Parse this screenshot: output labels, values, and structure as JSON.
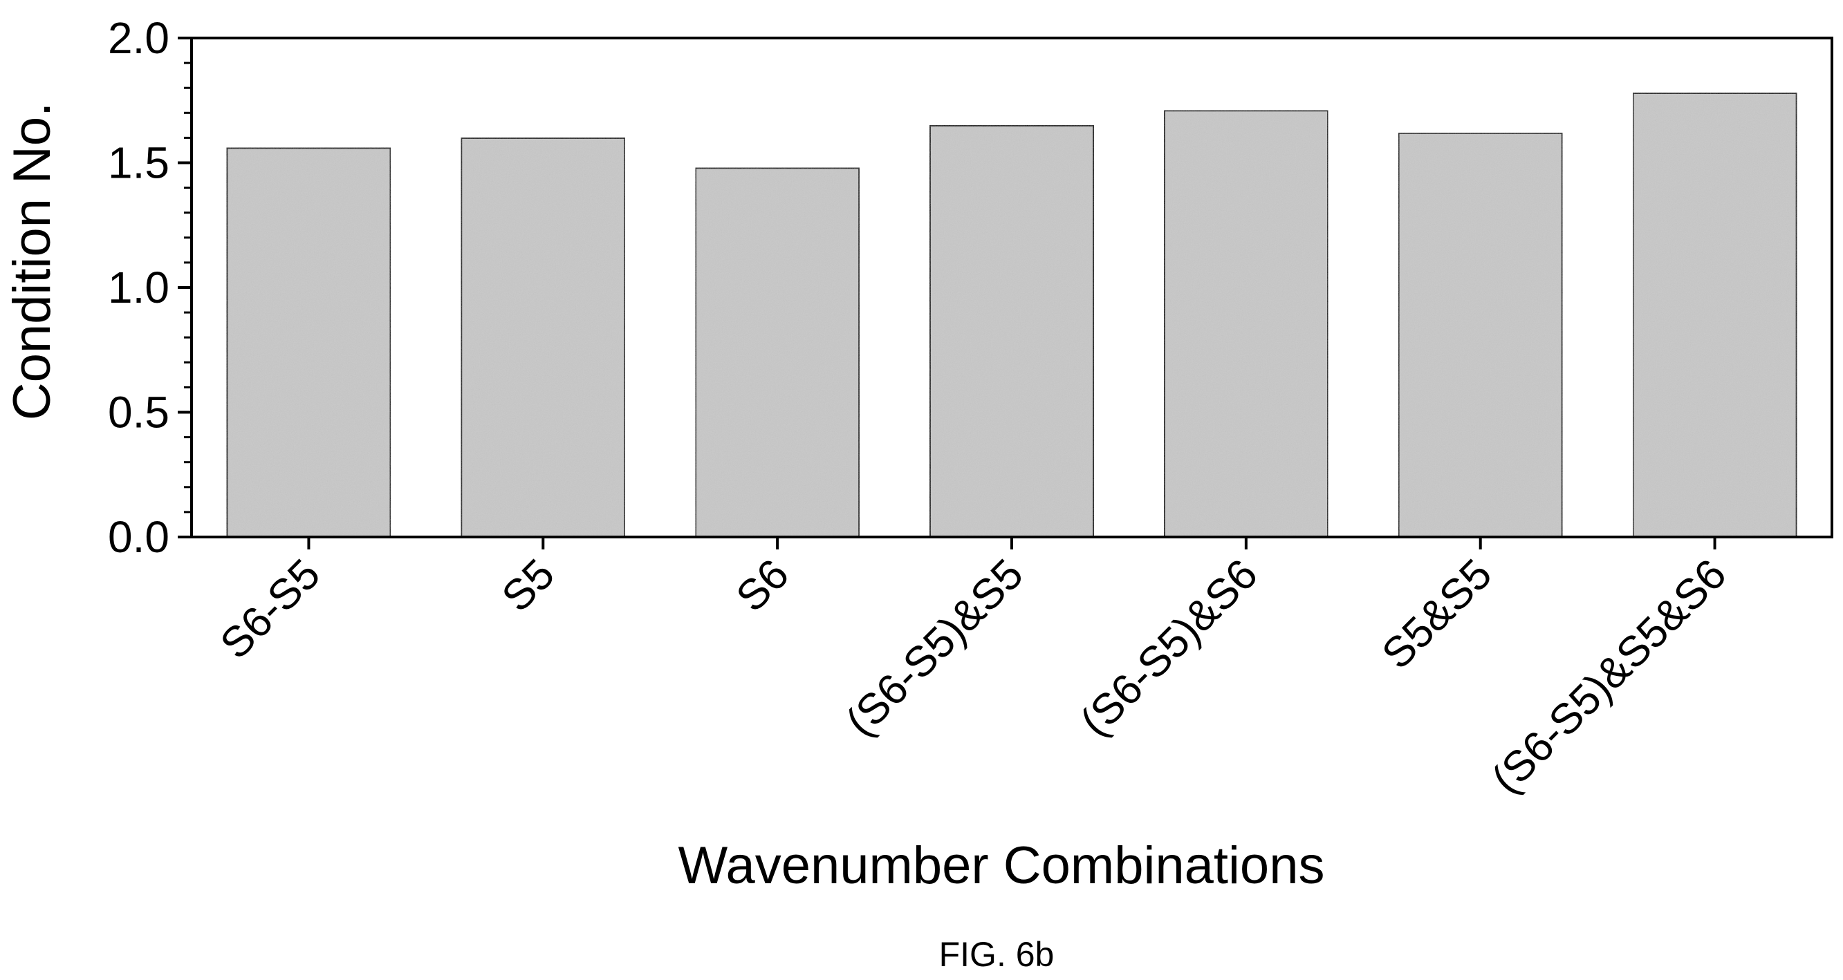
{
  "chart_data": {
    "type": "bar",
    "categories": [
      "S6-S5",
      "S5",
      "S6",
      "(S6-S5)&S5",
      "(S6-S5)&S6",
      "S5&S5",
      "(S6-S5)&S5&S6"
    ],
    "values": [
      1.56,
      1.6,
      1.48,
      1.65,
      1.71,
      1.62,
      1.78
    ],
    "xlabel": "Wavenumber Combinations",
    "ylabel": "Condition No.",
    "ylim": [
      0.0,
      2.0
    ],
    "yticks": [
      "0.0",
      "0.5",
      "1.0",
      "1.5",
      "2.0"
    ],
    "grid": false,
    "bar_color": "#c8c8c8",
    "bar_edge_color": "#000000"
  },
  "caption": "FIG. 6b"
}
